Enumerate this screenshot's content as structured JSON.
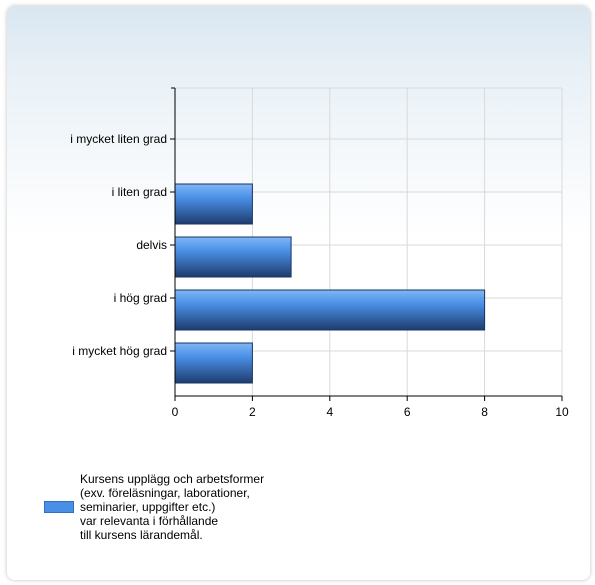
{
  "chart_data": {
    "type": "bar",
    "orientation": "horizontal",
    "categories": [
      "i mycket liten grad",
      "i liten grad",
      "delvis",
      "i hög grad",
      "i mycket hög grad"
    ],
    "series": [
      {
        "name": "Kursens upplägg och arbetsformer\n(exv. föreläsningar, laborationer,\nseminarier, uppgifter etc.)\nvar relevanta i förhållande\ntill kursens lärandemål.",
        "values": [
          0,
          2,
          3,
          8,
          2
        ]
      }
    ],
    "xlim": [
      0,
      10
    ],
    "xticks": [
      "0",
      "2",
      "4",
      "6",
      "8",
      "10"
    ],
    "grid": true,
    "legend_position": "bottom-left",
    "colors": {
      "bar": "#4a8fe6",
      "bar_dark": "#1e3c6e",
      "grid": "#d9d9d9",
      "axis": "#000000"
    }
  }
}
